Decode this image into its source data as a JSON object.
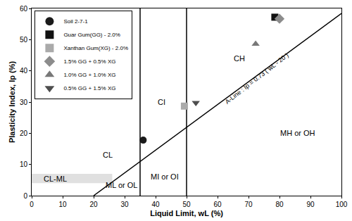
{
  "chart_data": {
    "type": "scatter",
    "x_label": "Liquid Limit, wL (%)",
    "y_label": "Plasticity Index, Ip (%)",
    "xlim": [
      0,
      100
    ],
    "xticks": [
      0,
      10,
      20,
      30,
      40,
      50,
      60,
      70,
      80,
      90,
      100
    ],
    "ylim": [
      0,
      60
    ],
    "yticks": [
      0,
      10,
      20,
      30,
      40,
      50,
      60
    ],
    "grid": false,
    "legend": "upper left",
    "series": [
      {
        "name": "Soil 2-7-1",
        "color": "#1a1a1a",
        "marker": "circle",
        "x": [
          36
        ],
        "values": [
          17.8
        ]
      },
      {
        "name": "Guar Gum(GG) - 2.0%",
        "color": "#111111",
        "marker": "square",
        "x": [
          78.5
        ],
        "values": [
          57.2
        ]
      },
      {
        "name": "Xanthan Gum(XG) - 2.0%",
        "color": "#aaaaaa",
        "marker": "square",
        "x": [
          49.3
        ],
        "values": [
          28.7
        ]
      },
      {
        "name": "1.5% GG + 0.5% XG",
        "color": "#8c8c8c",
        "marker": "diamond",
        "x": [
          80
        ],
        "values": [
          56.7
        ]
      },
      {
        "name": "1.0% GG + 1.0% XG",
        "color": "#787878",
        "marker": "triangle-up",
        "x": [
          72.3
        ],
        "values": [
          48.6
        ]
      },
      {
        "name": "0.5% GG + 1.5% XG",
        "color": "#4d4d4d",
        "marker": "triangle-down",
        "x": [
          53
        ],
        "values": [
          29.8
        ]
      }
    ],
    "lines": [
      {
        "x": [
          20,
          100
        ],
        "y": [
          0,
          58.4
        ],
        "color": "#000000"
      },
      {
        "x": [
          35,
          35
        ],
        "y": [
          0,
          60
        ],
        "color": "#000000"
      },
      {
        "x": [
          50,
          50
        ],
        "y": [
          0,
          60
        ],
        "color": "#000000"
      }
    ],
    "bands": [
      {
        "x": [
          0,
          26
        ],
        "y": [
          4,
          7
        ],
        "color": "#e0e0e0"
      }
    ],
    "annotations": [
      {
        "text": "CH",
        "x": 67,
        "y": 44
      },
      {
        "text": "CI",
        "x": 42,
        "y": 30
      },
      {
        "text": "CL",
        "x": 24.5,
        "y": 13
      },
      {
        "text": "CL-ML",
        "x": 7.5,
        "y": 5.5
      },
      {
        "text": "ML or OL",
        "x": 29,
        "y": 3.3
      },
      {
        "text": "MI or OI",
        "x": 43,
        "y": 6
      },
      {
        "text": "MH or OH",
        "x": 86,
        "y": 20
      },
      {
        "text": "A-Line : Ip = 0.73 ( wL - 20 )",
        "x": 72.5,
        "y": 37.5,
        "rotated": true
      }
    ]
  }
}
